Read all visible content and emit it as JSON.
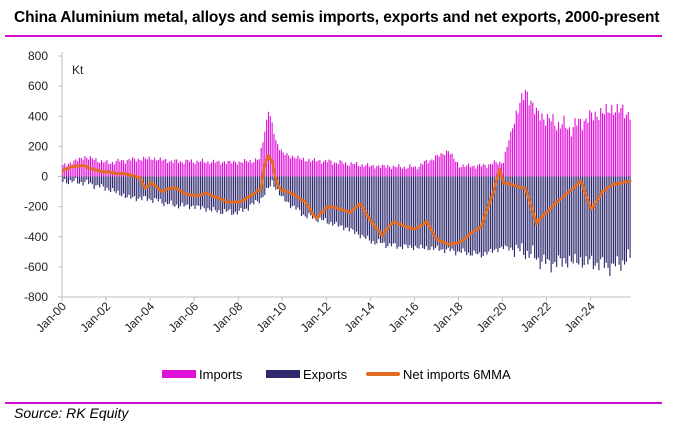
{
  "title": "China Aluminium metal, alloys and semis imports, exports and net exports, 2000-present",
  "source": "Source: RK Equity",
  "colors": {
    "accent_rule": "#d00cd0",
    "imports": "#e011d8",
    "exports": "#2e2a6e",
    "net": "#e36c22"
  },
  "legend": {
    "imports": "Imports",
    "exports": "Exports",
    "net": "Net imports 6MMA"
  },
  "chart_data": {
    "type": "bar",
    "title": "China Aluminium metal, alloys and semis imports, exports and net exports, 2000-present",
    "ylabel": "Kt",
    "ylim": [
      -800,
      800
    ],
    "yticks": [
      800,
      600,
      400,
      200,
      0,
      -200,
      -400,
      -600,
      -800
    ],
    "xticks": [
      "Jan-00",
      "Jan-02",
      "Jan-04",
      "Jan-06",
      "Jan-08",
      "Jan-10",
      "Jan-12",
      "Jan-14",
      "Jan-16",
      "Jan-18",
      "Jan-20",
      "Jan-22",
      "Jan-24"
    ],
    "x_start": "Jan-00",
    "x_end": "Oct-25",
    "frequency": "monthly",
    "series": [
      {
        "name": "Imports",
        "kind": "bar",
        "anchors": [
          [
            0,
            70
          ],
          [
            12,
            130
          ],
          [
            24,
            90
          ],
          [
            36,
            110
          ],
          [
            48,
            120
          ],
          [
            60,
            100
          ],
          [
            72,
            100
          ],
          [
            84,
            95
          ],
          [
            96,
            95
          ],
          [
            107,
            110
          ],
          [
            112,
            440
          ],
          [
            116,
            240
          ],
          [
            120,
            150
          ],
          [
            132,
            110
          ],
          [
            144,
            100
          ],
          [
            156,
            85
          ],
          [
            168,
            70
          ],
          [
            192,
            60
          ],
          [
            210,
            170
          ],
          [
            216,
            70
          ],
          [
            228,
            70
          ],
          [
            240,
            100
          ],
          [
            246,
            380
          ],
          [
            252,
            570
          ],
          [
            258,
            420
          ],
          [
            264,
            380
          ],
          [
            276,
            320
          ],
          [
            288,
            400
          ],
          [
            300,
            450
          ],
          [
            309,
            420
          ]
        ]
      },
      {
        "name": "Exports",
        "kind": "bar",
        "anchors": [
          [
            0,
            -30
          ],
          [
            12,
            -40
          ],
          [
            24,
            -80
          ],
          [
            36,
            -140
          ],
          [
            48,
            -150
          ],
          [
            60,
            -190
          ],
          [
            72,
            -200
          ],
          [
            84,
            -230
          ],
          [
            96,
            -240
          ],
          [
            108,
            -150
          ],
          [
            114,
            -40
          ],
          [
            120,
            -150
          ],
          [
            132,
            -260
          ],
          [
            144,
            -300
          ],
          [
            156,
            -350
          ],
          [
            168,
            -430
          ],
          [
            180,
            -460
          ],
          [
            192,
            -470
          ],
          [
            204,
            -480
          ],
          [
            216,
            -500
          ],
          [
            228,
            -520
          ],
          [
            240,
            -470
          ],
          [
            252,
            -500
          ],
          [
            264,
            -580
          ],
          [
            276,
            -560
          ],
          [
            288,
            -570
          ],
          [
            300,
            -600
          ],
          [
            309,
            -540
          ]
        ]
      },
      {
        "name": "Net imports 6MMA",
        "kind": "line",
        "anchors": [
          [
            0,
            40
          ],
          [
            6,
            70
          ],
          [
            12,
            70
          ],
          [
            18,
            40
          ],
          [
            24,
            30
          ],
          [
            30,
            20
          ],
          [
            36,
            15
          ],
          [
            42,
            -10
          ],
          [
            45,
            -80
          ],
          [
            48,
            -40
          ],
          [
            54,
            -100
          ],
          [
            60,
            -70
          ],
          [
            66,
            -110
          ],
          [
            72,
            -130
          ],
          [
            78,
            -110
          ],
          [
            84,
            -140
          ],
          [
            90,
            -170
          ],
          [
            96,
            -170
          ],
          [
            102,
            -130
          ],
          [
            108,
            -80
          ],
          [
            110,
            80
          ],
          [
            112,
            140
          ],
          [
            114,
            100
          ],
          [
            116,
            -20
          ],
          [
            118,
            -80
          ],
          [
            120,
            -90
          ],
          [
            126,
            -120
          ],
          [
            132,
            -170
          ],
          [
            138,
            -280
          ],
          [
            144,
            -200
          ],
          [
            150,
            -210
          ],
          [
            156,
            -240
          ],
          [
            162,
            -180
          ],
          [
            168,
            -300
          ],
          [
            174,
            -390
          ],
          [
            180,
            -300
          ],
          [
            186,
            -330
          ],
          [
            192,
            -350
          ],
          [
            198,
            -300
          ],
          [
            204,
            -420
          ],
          [
            210,
            -450
          ],
          [
            216,
            -440
          ],
          [
            222,
            -380
          ],
          [
            228,
            -330
          ],
          [
            234,
            -120
          ],
          [
            238,
            50
          ],
          [
            240,
            -40
          ],
          [
            246,
            -60
          ],
          [
            252,
            -80
          ],
          [
            258,
            -310
          ],
          [
            264,
            -230
          ],
          [
            270,
            -160
          ],
          [
            276,
            -100
          ],
          [
            282,
            -30
          ],
          [
            288,
            -220
          ],
          [
            294,
            -100
          ],
          [
            300,
            -50
          ],
          [
            306,
            -40
          ],
          [
            309,
            -30
          ]
        ]
      }
    ]
  }
}
